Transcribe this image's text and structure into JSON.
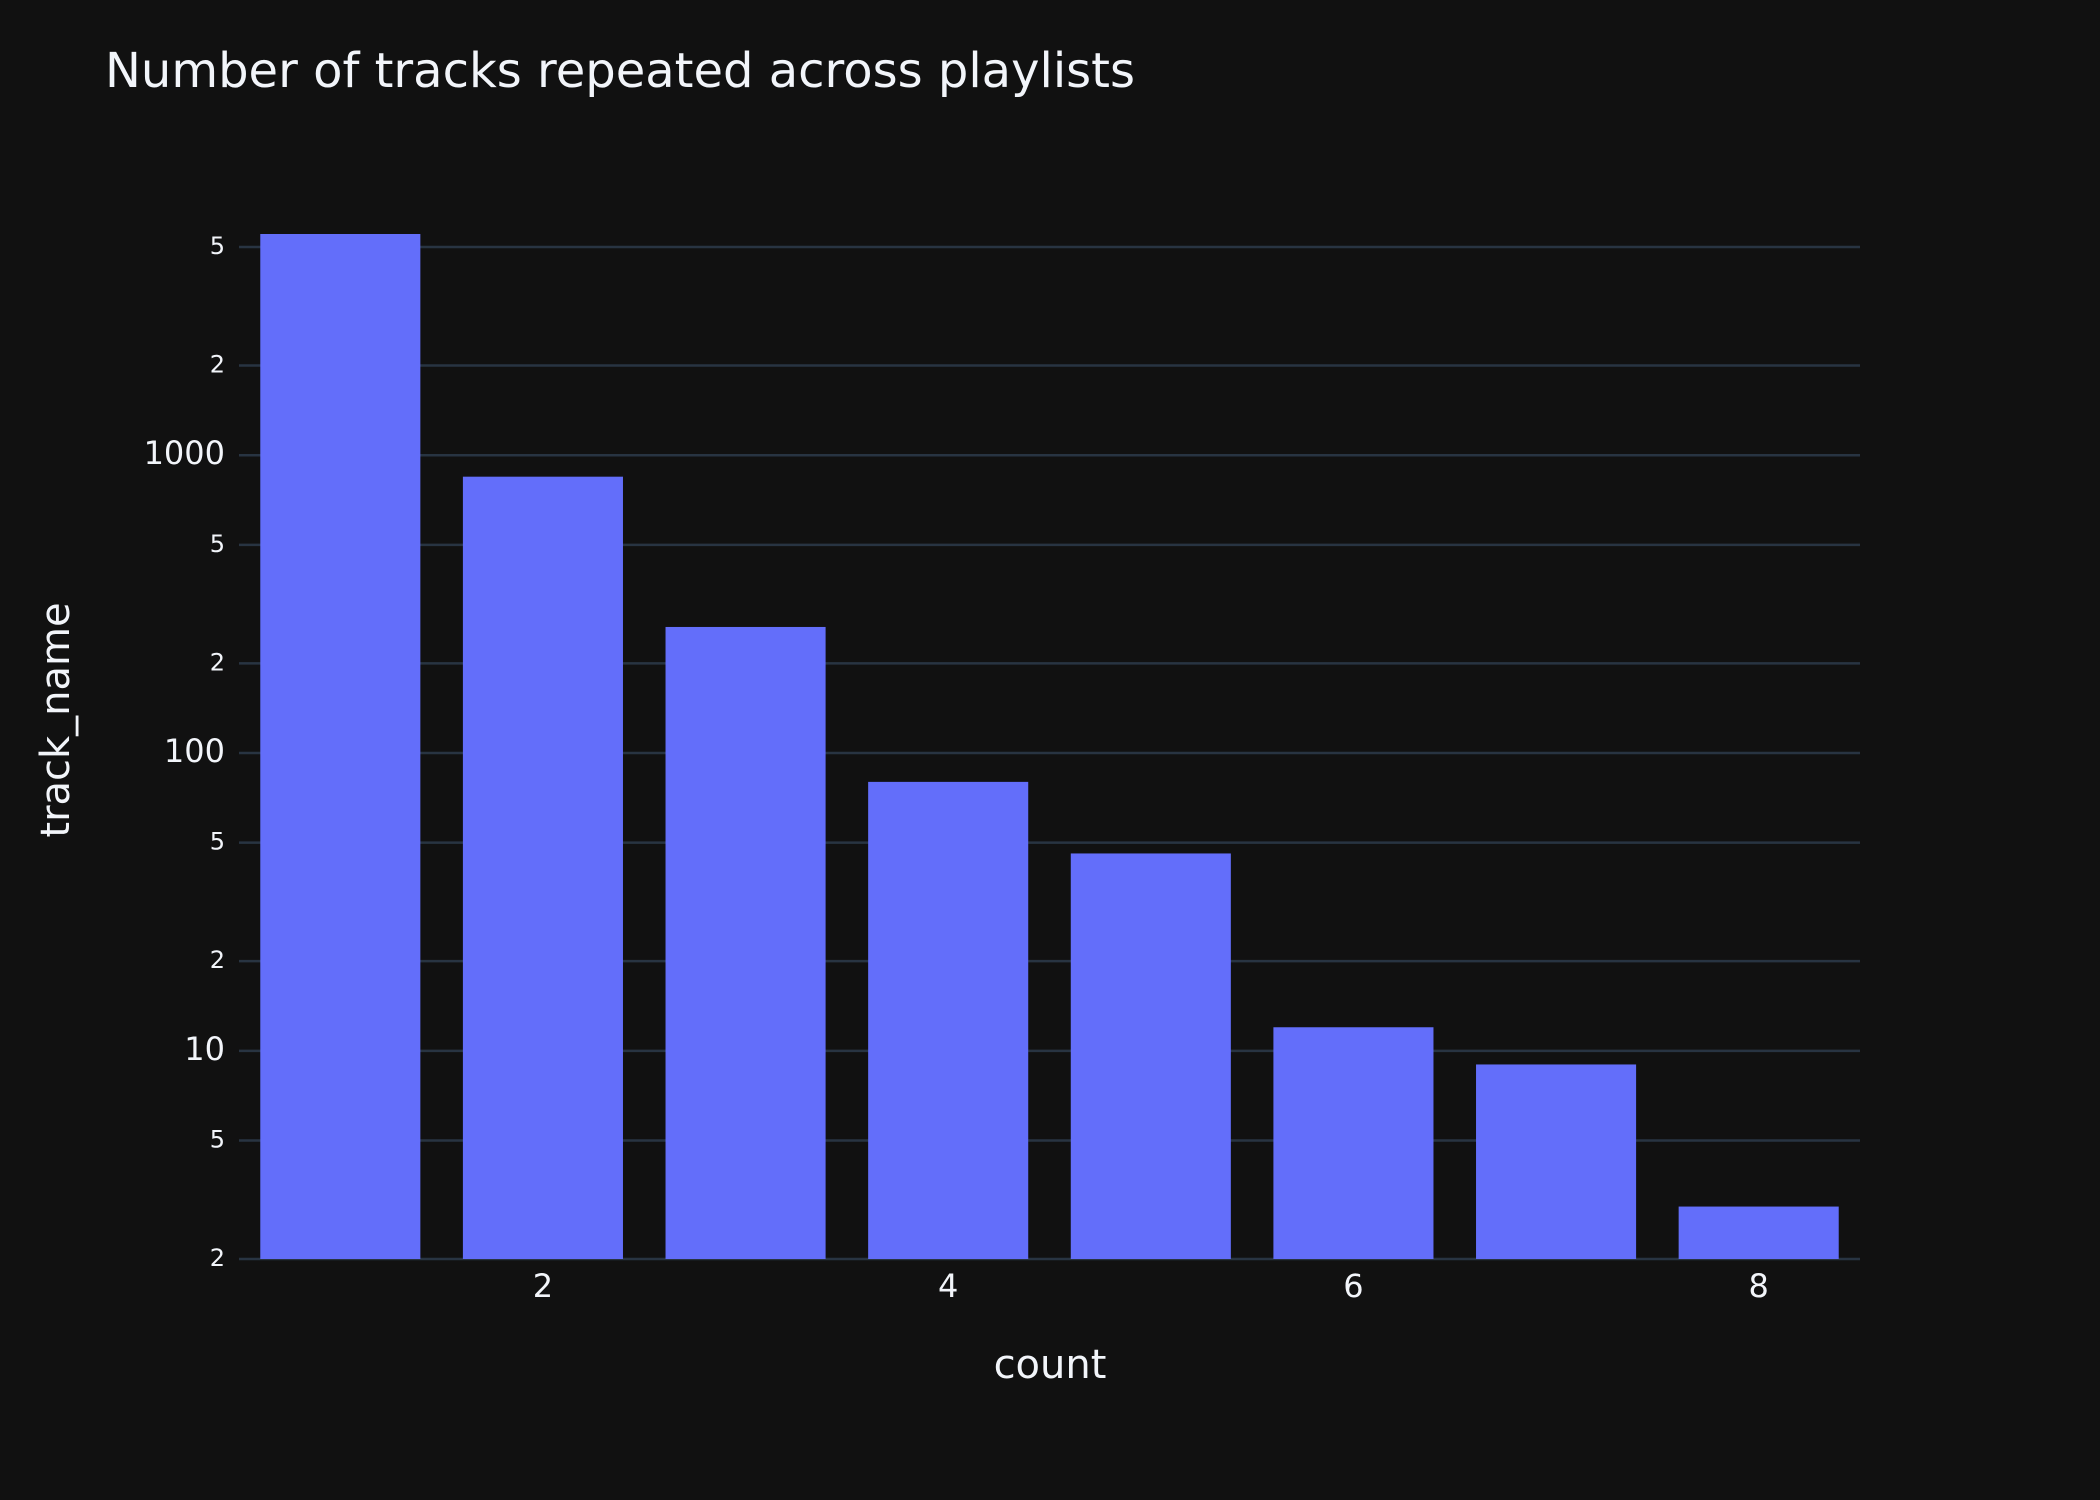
{
  "chart_data": {
    "type": "bar",
    "title": "Number of tracks repeated across playlists",
    "x_label": "count",
    "y_label": "track_name",
    "x": [
      1,
      2,
      3,
      4,
      5,
      6,
      7,
      8
    ],
    "values": [
      5530,
      847,
      265,
      80,
      46,
      12,
      9,
      3
    ],
    "color": "#636efa",
    "xlim": [
      0.5,
      8.5
    ],
    "xticks": [
      2,
      4,
      6,
      8
    ],
    "ylim": [
      2,
      5530
    ],
    "log_y": true,
    "grid": true,
    "yticks": [
      2,
      5,
      10,
      {
        "value": 20,
        "label": "2"
      },
      {
        "value": 50,
        "label": "5"
      },
      100,
      {
        "value": 200,
        "label": "2"
      },
      {
        "value": 500,
        "label": "5"
      },
      1000,
      {
        "value": 2000,
        "label": "2"
      },
      {
        "value": 5000,
        "label": "5"
      }
    ]
  }
}
